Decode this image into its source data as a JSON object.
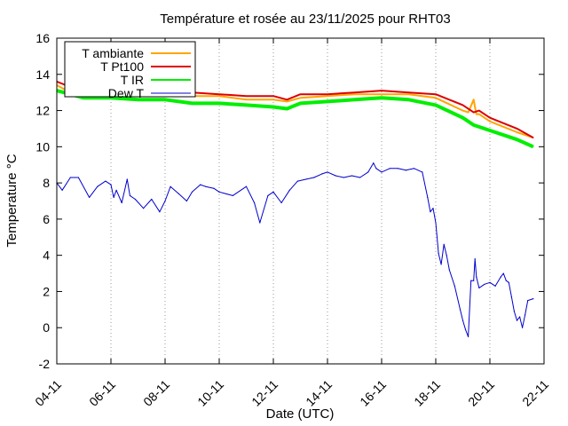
{
  "chart_data": {
    "type": "line",
    "title": "Température et rosée au 23/11/2025 pour RHT03",
    "xlabel": "Date (UTC)",
    "ylabel": "Temperature °C",
    "xlim": [
      0,
      18
    ],
    "ylim": [
      -2,
      16
    ],
    "grid": "vertical dotted lines at x ticks",
    "legend_position": "top-left",
    "x_ticks": [
      {
        "pos": 0,
        "label": "04-11"
      },
      {
        "pos": 2,
        "label": "06-11"
      },
      {
        "pos": 4,
        "label": "08-11"
      },
      {
        "pos": 6,
        "label": "10-11"
      },
      {
        "pos": 8,
        "label": "12-11"
      },
      {
        "pos": 10,
        "label": "14-11"
      },
      {
        "pos": 12,
        "label": "16-11"
      },
      {
        "pos": 14,
        "label": "18-11"
      },
      {
        "pos": 16,
        "label": "20-11"
      },
      {
        "pos": 18,
        "label": "22-11"
      }
    ],
    "y_ticks": [
      -2,
      0,
      2,
      4,
      6,
      8,
      10,
      12,
      14,
      16
    ],
    "series": [
      {
        "name": "T ambiante",
        "color": "#ffa500",
        "x": [
          0,
          0.5,
          1,
          2,
          3,
          4,
          5,
          6,
          7,
          8,
          8.5,
          9,
          10,
          11,
          12,
          13,
          14,
          15,
          15.2,
          15.4,
          15.45,
          15.5,
          15.6,
          16,
          17,
          17.6
        ],
        "y": [
          13.4,
          13.0,
          12.9,
          12.9,
          12.9,
          12.8,
          12.8,
          12.8,
          12.6,
          12.6,
          12.5,
          12.7,
          12.8,
          12.9,
          12.9,
          12.9,
          12.7,
          12.0,
          11.9,
          12.6,
          12.2,
          11.8,
          11.8,
          11.4,
          10.8,
          10.5
        ]
      },
      {
        "name": "T Pt100",
        "color": "#dd0000",
        "x": [
          0,
          0.5,
          1,
          2,
          3,
          4,
          5,
          6,
          7,
          8,
          8.5,
          9,
          10,
          11,
          12,
          13,
          14,
          15,
          15.4,
          15.6,
          16,
          17,
          17.6
        ],
        "y": [
          13.6,
          13.3,
          13.1,
          13.0,
          13.0,
          12.9,
          13.0,
          12.9,
          12.8,
          12.8,
          12.6,
          12.9,
          12.9,
          13.0,
          13.1,
          13.0,
          12.9,
          12.3,
          11.9,
          12.0,
          11.6,
          11.0,
          10.5
        ]
      },
      {
        "name": "T IR",
        "color": "#00ee00",
        "x": [
          0,
          0.5,
          1,
          2,
          3,
          4,
          5,
          6,
          7,
          8,
          8.5,
          9,
          10,
          11,
          12,
          13,
          14,
          15,
          15.4,
          16,
          17,
          17.6
        ],
        "y": [
          13.1,
          12.9,
          12.7,
          12.7,
          12.6,
          12.6,
          12.4,
          12.4,
          12.3,
          12.2,
          12.1,
          12.4,
          12.5,
          12.6,
          12.7,
          12.6,
          12.3,
          11.6,
          11.2,
          10.9,
          10.4,
          10.0
        ]
      },
      {
        "name": "Dew T",
        "color": "#0000cc",
        "x": [
          0,
          0.2,
          0.5,
          0.8,
          1.2,
          1.5,
          1.8,
          2.0,
          2.1,
          2.2,
          2.4,
          2.6,
          2.7,
          2.9,
          3.2,
          3.5,
          3.8,
          4.0,
          4.2,
          4.5,
          4.8,
          5.0,
          5.3,
          5.5,
          5.8,
          6.0,
          6.5,
          7.0,
          7.3,
          7.5,
          7.8,
          8.0,
          8.3,
          8.6,
          8.9,
          9.2,
          9.5,
          9.8,
          10.0,
          10.3,
          10.6,
          10.9,
          11.2,
          11.5,
          11.7,
          11.8,
          12.0,
          12.3,
          12.6,
          12.9,
          13.2,
          13.5,
          13.7,
          13.8,
          13.9,
          14.0,
          14.1,
          14.2,
          14.3,
          14.4,
          14.5,
          14.7,
          14.9,
          15.0,
          15.1,
          15.2,
          15.3,
          15.4,
          15.45,
          15.5,
          15.6,
          15.8,
          16.0,
          16.2,
          16.4,
          16.5,
          16.6,
          16.7,
          16.8,
          16.9,
          17.0,
          17.1,
          17.2,
          17.3,
          17.4,
          17.6
        ],
        "y": [
          8.0,
          7.6,
          8.3,
          8.3,
          7.2,
          7.8,
          8.1,
          7.9,
          7.2,
          7.6,
          6.9,
          8.2,
          7.3,
          7.1,
          6.6,
          7.1,
          6.4,
          7.0,
          7.8,
          7.4,
          7.0,
          7.5,
          7.9,
          7.8,
          7.7,
          7.5,
          7.3,
          7.8,
          6.9,
          5.8,
          7.3,
          7.5,
          6.9,
          7.6,
          8.1,
          8.2,
          8.3,
          8.5,
          8.6,
          8.4,
          8.3,
          8.4,
          8.3,
          8.6,
          9.1,
          8.8,
          8.6,
          8.8,
          8.8,
          8.7,
          8.8,
          8.6,
          7.2,
          6.4,
          6.6,
          5.8,
          4.1,
          3.5,
          4.6,
          4.0,
          3.2,
          2.3,
          1.0,
          0.4,
          -0.1,
          -0.5,
          2.6,
          2.6,
          3.8,
          2.8,
          2.2,
          2.4,
          2.5,
          2.3,
          2.8,
          3.0,
          2.6,
          2.5,
          1.7,
          0.9,
          0.4,
          0.6,
          0.0,
          0.7,
          1.5,
          1.6
        ]
      }
    ]
  }
}
